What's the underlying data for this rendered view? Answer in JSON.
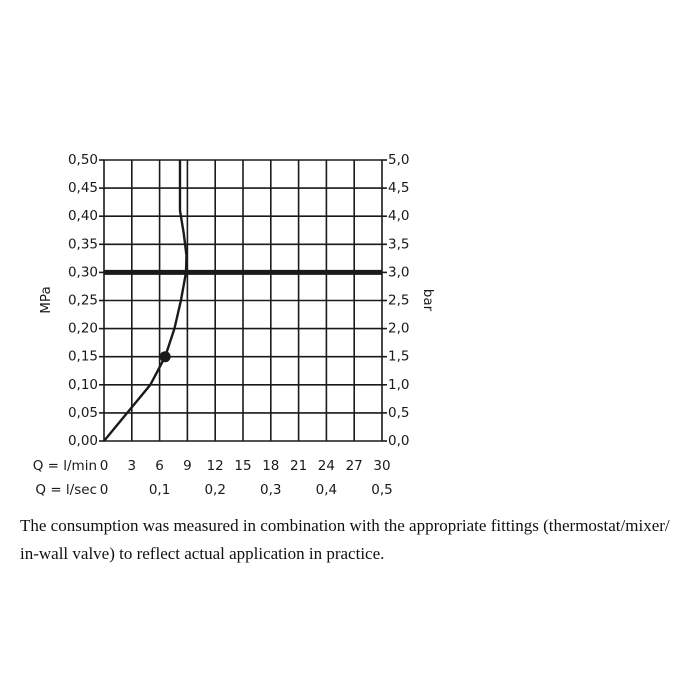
{
  "chart_data": {
    "type": "line",
    "ylabel": "MPa",
    "y2label": "bar",
    "xlabel": "Q = l/min",
    "x2label": "Q = l/sec",
    "xlim": [
      0,
      30
    ],
    "xticks": [
      0,
      3,
      6,
      9,
      12,
      15,
      18,
      21,
      24,
      27,
      30
    ],
    "x2lim": [
      0,
      0.5
    ],
    "x2ticks": [
      0,
      {
        "value": 0.1,
        "label": "0,1"
      },
      {
        "value": 0.2,
        "label": "0,2"
      },
      {
        "value": 0.3,
        "label": "0,3"
      },
      {
        "value": 0.4,
        "label": "0,4"
      },
      {
        "value": 0.5,
        "label": "0,5"
      }
    ],
    "ylim": [
      0,
      0.5
    ],
    "yticks": [
      {
        "value": 0,
        "label": "0,00"
      },
      {
        "value": 0.05,
        "label": "0,05"
      },
      {
        "value": 0.1,
        "label": "0,10"
      },
      {
        "value": 0.15,
        "label": "0,15"
      },
      {
        "value": 0.2,
        "label": "0,20"
      },
      {
        "value": 0.25,
        "label": "0,25"
      },
      {
        "value": 0.3,
        "label": "0,30"
      },
      {
        "value": 0.35,
        "label": "0,35"
      },
      {
        "value": 0.4,
        "label": "0,40"
      },
      {
        "value": 0.45,
        "label": "0,45"
      },
      {
        "value": 0.5,
        "label": "0,50"
      }
    ],
    "y2lim": [
      0,
      5
    ],
    "y2ticks": [
      {
        "value": 0,
        "label": "0,0"
      },
      {
        "value": 0.5,
        "label": "0,5"
      },
      {
        "value": 1,
        "label": "1,0"
      },
      {
        "value": 1.5,
        "label": "1,5"
      },
      {
        "value": 2,
        "label": "2,0"
      },
      {
        "value": 2.5,
        "label": "2,5"
      },
      {
        "value": 3,
        "label": "3,0"
      },
      {
        "value": 3.5,
        "label": "3,5"
      },
      {
        "value": 4,
        "label": "4,0"
      },
      {
        "value": 4.5,
        "label": "4,5"
      },
      {
        "value": 5,
        "label": "5,0"
      }
    ],
    "grid": true,
    "series": [
      {
        "color": "#1a1a1a",
        "x": [
          0,
          2.5,
          5,
          6.6,
          7.6,
          8.3,
          8.85,
          8.9,
          8.6,
          8.2,
          8.2,
          8.2
        ],
        "values": [
          0,
          0.05,
          0.1,
          0.15,
          0.2,
          0.25,
          0.3,
          0.33,
          0.37,
          0.41,
          0.45,
          0.5
        ]
      }
    ],
    "marker": {
      "x": 6.6,
      "value": 0.15
    },
    "hline": 0.3,
    "vline": {
      "x": 9,
      "ymax": 0.3
    }
  },
  "note": {
    "lines": [
      "The consumption was measured in combination with the appropriate fittings (thermostat/mixer/",
      "in-wall valve) to reflect actual application in practice."
    ]
  }
}
